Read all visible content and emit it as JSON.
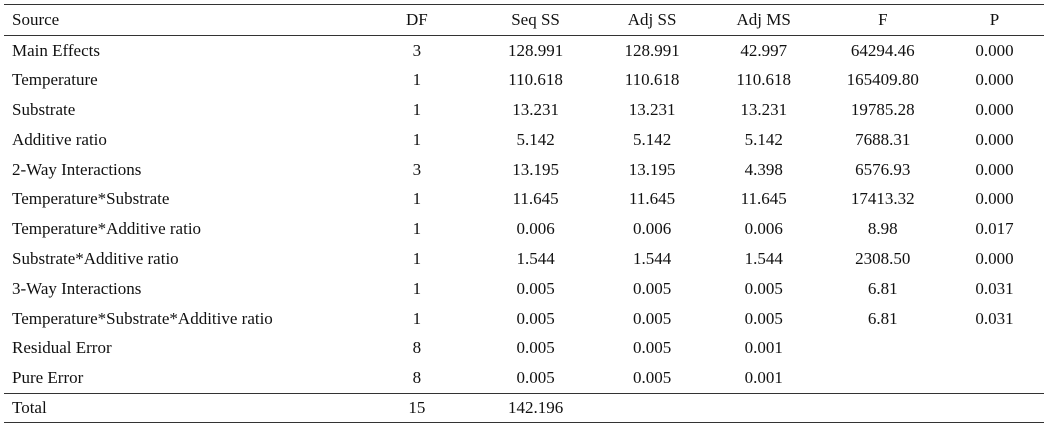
{
  "table": {
    "headers": [
      "Source",
      "DF",
      "Seq SS",
      "Adj SS",
      "Adj MS",
      "F",
      "P"
    ],
    "rows": [
      [
        "Main Effects",
        "3",
        "128.991",
        "128.991",
        "42.997",
        "64294.46",
        "0.000"
      ],
      [
        "Temperature",
        "1",
        "110.618",
        "110.618",
        "110.618",
        "165409.80",
        "0.000"
      ],
      [
        "Substrate",
        "1",
        "13.231",
        "13.231",
        "13.231",
        "19785.28",
        "0.000"
      ],
      [
        "Additive ratio",
        "1",
        "5.142",
        "5.142",
        "5.142",
        "7688.31",
        "0.000"
      ],
      [
        "2-Way Interactions",
        "3",
        "13.195",
        "13.195",
        "4.398",
        "6576.93",
        "0.000"
      ],
      [
        "Temperature*Substrate",
        "1",
        "11.645",
        "11.645",
        "11.645",
        "17413.32",
        "0.000"
      ],
      [
        "Temperature*Additive ratio",
        "1",
        "0.006",
        "0.006",
        "0.006",
        "8.98",
        "0.017"
      ],
      [
        "Substrate*Additive ratio",
        "1",
        "1.544",
        "1.544",
        "1.544",
        "2308.50",
        "0.000"
      ],
      [
        "3-Way Interactions",
        "1",
        "0.005",
        "0.005",
        "0.005",
        "6.81",
        "0.031"
      ],
      [
        "Temperature*Substrate*Additive ratio",
        "1",
        "0.005",
        "0.005",
        "0.005",
        "6.81",
        "0.031"
      ],
      [
        "Residual Error",
        "8",
        "0.005",
        "0.005",
        "0.001",
        "",
        ""
      ],
      [
        "Pure Error",
        "8",
        "0.005",
        "0.005",
        "0.001",
        "",
        ""
      ]
    ],
    "total": [
      "Total",
      "15",
      "142.196",
      "",
      "",
      "",
      ""
    ]
  }
}
